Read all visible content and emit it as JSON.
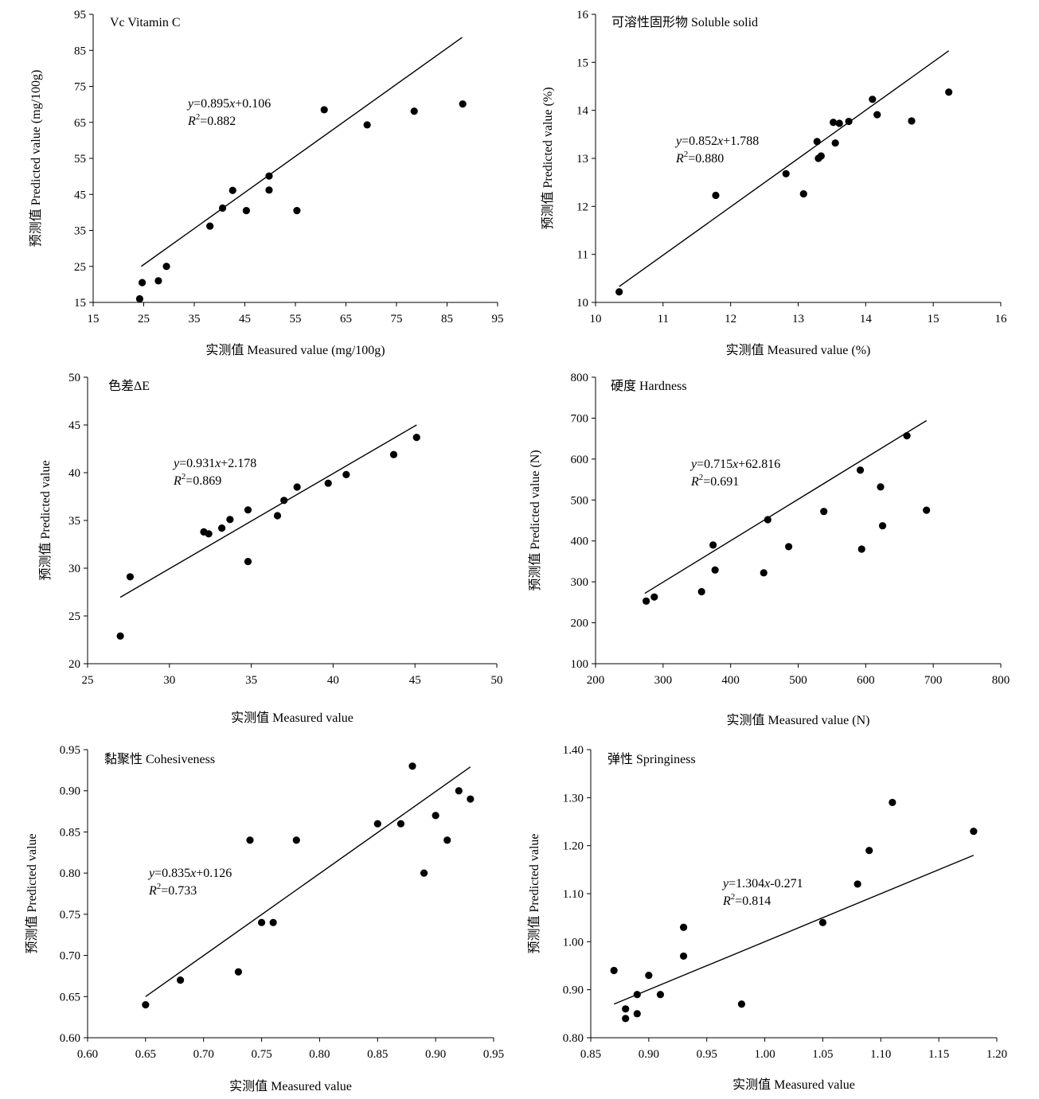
{
  "chart_data": [
    {
      "type": "scatter",
      "title": "Vc Vitamin C",
      "xlabel": "实测值 Measured value (mg/100g)",
      "ylabel": "预测值 Predicted value (mg/100g)",
      "xlim": [
        15,
        95
      ],
      "ylim": [
        15,
        95
      ],
      "xticks": [
        "15",
        "25",
        "35",
        "45",
        "55",
        "65",
        "75",
        "85",
        "95"
      ],
      "yticks": [
        "15",
        "25",
        "35",
        "45",
        "55",
        "65",
        "75",
        "85",
        "95"
      ],
      "points": [
        [
          24.2,
          16
        ],
        [
          24.7,
          20.5
        ],
        [
          27.9,
          21
        ],
        [
          29.5,
          25
        ],
        [
          38.1,
          36.2
        ],
        [
          40.6,
          41.2
        ],
        [
          42.6,
          46.1
        ],
        [
          45.3,
          40.5
        ],
        [
          49.8,
          46.2
        ],
        [
          49.8,
          50.1
        ],
        [
          55.3,
          40.5
        ],
        [
          60.7,
          68.5
        ],
        [
          69.2,
          64.3
        ],
        [
          78.5,
          68.1
        ],
        [
          88.1,
          70.1
        ]
      ],
      "fit_line": [
        [
          24.5,
          25
        ],
        [
          88,
          88.6
        ]
      ],
      "equation": {
        "y": "y",
        "body": "=0.895",
        "x": "x",
        "tail": "+0.106"
      },
      "r2": {
        "r": "R",
        "sup": "2",
        "tail": "=0.882"
      }
    },
    {
      "type": "scatter",
      "title": "可溶性固形物 Soluble solid",
      "xlabel": "实测值 Measured value (%)",
      "ylabel": "预测值 Predicted value (%)",
      "xlim": [
        10,
        16
      ],
      "ylim": [
        10,
        16
      ],
      "xticks": [
        "10",
        "11",
        "12",
        "13",
        "14",
        "15",
        "16"
      ],
      "yticks": [
        "10",
        "11",
        "12",
        "13",
        "14",
        "15",
        "16"
      ],
      "points": [
        [
          10.35,
          10.22
        ],
        [
          11.78,
          12.23
        ],
        [
          12.82,
          12.68
        ],
        [
          13.08,
          12.26
        ],
        [
          13.28,
          13.35
        ],
        [
          13.3,
          13.0
        ],
        [
          13.34,
          13.05
        ],
        [
          13.52,
          13.75
        ],
        [
          13.55,
          13.32
        ],
        [
          13.61,
          13.73
        ],
        [
          13.75,
          13.77
        ],
        [
          14.1,
          14.23
        ],
        [
          14.17,
          13.91
        ],
        [
          14.68,
          13.78
        ],
        [
          15.23,
          14.38
        ]
      ],
      "fit_line": [
        [
          10.35,
          10.33
        ],
        [
          15.23,
          15.24
        ]
      ],
      "equation": {
        "y": "y",
        "body": "=0.852",
        "x": "x",
        "tail": "+1.788"
      },
      "r2": {
        "r": "R",
        "sup": "2",
        "tail": "=0.880"
      }
    },
    {
      "type": "scatter",
      "title": "色差ΔE",
      "xlabel": "实测值 Measured value",
      "ylabel": "预测值 Predicted value",
      "xlim": [
        25,
        50
      ],
      "ylim": [
        20,
        50
      ],
      "xticks": [
        "25",
        "30",
        "35",
        "40",
        "45",
        "50"
      ],
      "yticks": [
        "20",
        "25",
        "30",
        "35",
        "40",
        "45",
        "50"
      ],
      "points": [
        [
          27.0,
          22.9
        ],
        [
          27.6,
          29.1
        ],
        [
          32.1,
          33.8
        ],
        [
          32.4,
          33.6
        ],
        [
          33.2,
          34.2
        ],
        [
          33.7,
          35.1
        ],
        [
          34.8,
          36.1
        ],
        [
          34.8,
          30.7
        ],
        [
          36.6,
          35.5
        ],
        [
          37.0,
          37.1
        ],
        [
          37.8,
          38.5
        ],
        [
          39.7,
          38.9
        ],
        [
          40.8,
          39.8
        ],
        [
          43.7,
          41.9
        ],
        [
          45.1,
          43.7
        ]
      ],
      "fit_line": [
        [
          27.0,
          26.96
        ],
        [
          45.1,
          45.0
        ]
      ],
      "equation": {
        "y": "y",
        "body": "=0.931",
        "x": "x",
        "tail": "+2.178"
      },
      "r2": {
        "r": "R",
        "sup": "2",
        "tail": "=0.869"
      }
    },
    {
      "type": "scatter",
      "title": "硬度 Hardness",
      "xlabel": "实测值 Measured value (N)",
      "ylabel": "预测值 Predicted value (N)",
      "xlim": [
        200,
        800
      ],
      "ylim": [
        100,
        800
      ],
      "xticks": [
        "200",
        "300",
        "400",
        "500",
        "600",
        "700",
        "800"
      ],
      "yticks": [
        "100",
        "200",
        "300",
        "400",
        "500",
        "600",
        "700",
        "800"
      ],
      "points": [
        [
          275,
          253
        ],
        [
          287,
          263
        ],
        [
          357,
          276
        ],
        [
          374,
          390
        ],
        [
          377,
          329
        ],
        [
          449,
          322
        ],
        [
          455,
          452
        ],
        [
          486,
          386
        ],
        [
          538,
          472
        ],
        [
          592,
          573
        ],
        [
          594,
          380
        ],
        [
          622,
          532
        ],
        [
          625,
          437
        ],
        [
          661,
          657
        ],
        [
          690,
          475
        ]
      ],
      "fit_line": [
        [
          273,
          272
        ],
        [
          690,
          694
        ]
      ],
      "equation": {
        "y": "y",
        "body": "=0.715",
        "x": "x",
        "tail": "+62.816"
      },
      "r2": {
        "r": "R",
        "sup": "2",
        "tail": "=0.691"
      }
    },
    {
      "type": "scatter",
      "title": "黏聚性 Cohesiveness",
      "xlabel": "实测值 Measured value",
      "ylabel": "预测值 Predicted value",
      "xlim": [
        0.6,
        0.95
      ],
      "ylim": [
        0.6,
        0.95
      ],
      "xticks": [
        "0.60",
        "0.65",
        "0.70",
        "0.75",
        "0.80",
        "0.85",
        "0.90",
        "0.95"
      ],
      "yticks": [
        "0.60",
        "0.65",
        "0.70",
        "0.75",
        "0.80",
        "0.85",
        "0.90",
        "0.95"
      ],
      "points": [
        [
          0.65,
          0.64
        ],
        [
          0.68,
          0.67
        ],
        [
          0.73,
          0.68
        ],
        [
          0.74,
          0.84
        ],
        [
          0.75,
          0.74
        ],
        [
          0.76,
          0.74
        ],
        [
          0.78,
          0.84
        ],
        [
          0.85,
          0.86
        ],
        [
          0.87,
          0.86
        ],
        [
          0.88,
          0.93
        ],
        [
          0.89,
          0.8
        ],
        [
          0.9,
          0.87
        ],
        [
          0.91,
          0.84
        ],
        [
          0.92,
          0.9
        ],
        [
          0.93,
          0.89
        ]
      ],
      "fit_line": [
        [
          0.65,
          0.65
        ],
        [
          0.93,
          0.929
        ]
      ],
      "equation": {
        "y": "y",
        "body": "=0.835",
        "x": "x",
        "tail": "+0.126"
      },
      "r2": {
        "r": "R",
        "sup": "2",
        "tail": "=0.733"
      }
    },
    {
      "type": "scatter",
      "title": "弹性 Springiness",
      "xlabel": "实测值 Measured value",
      "ylabel": "预测值 Predicted value",
      "xlim": [
        0.85,
        1.2
      ],
      "ylim": [
        0.8,
        1.4
      ],
      "xticks": [
        "0.85",
        "0.90",
        "0.95",
        "1.00",
        "1.05",
        "1.10",
        "1.15",
        "1.20"
      ],
      "yticks": [
        "0.80",
        "0.90",
        "1.00",
        "1.10",
        "1.20",
        "1.30",
        "1.40"
      ],
      "points": [
        [
          0.87,
          0.94
        ],
        [
          0.88,
          0.86
        ],
        [
          0.88,
          0.84
        ],
        [
          0.89,
          0.89
        ],
        [
          0.89,
          0.85
        ],
        [
          0.9,
          0.93
        ],
        [
          0.91,
          0.89
        ],
        [
          0.93,
          1.03
        ],
        [
          0.93,
          0.97
        ],
        [
          0.98,
          0.87
        ],
        [
          1.05,
          1.04
        ],
        [
          1.08,
          1.12
        ],
        [
          1.09,
          1.19
        ],
        [
          1.11,
          1.29
        ],
        [
          1.18,
          1.23
        ]
      ],
      "fit_line": [
        [
          0.87,
          0.87
        ],
        [
          1.18,
          1.18
        ]
      ],
      "equation": {
        "y": "y",
        "body": "=1.304",
        "x": "x",
        "tail": "-0.271"
      },
      "r2": {
        "r": "R",
        "sup": "2",
        "tail": "=0.814"
      }
    }
  ]
}
